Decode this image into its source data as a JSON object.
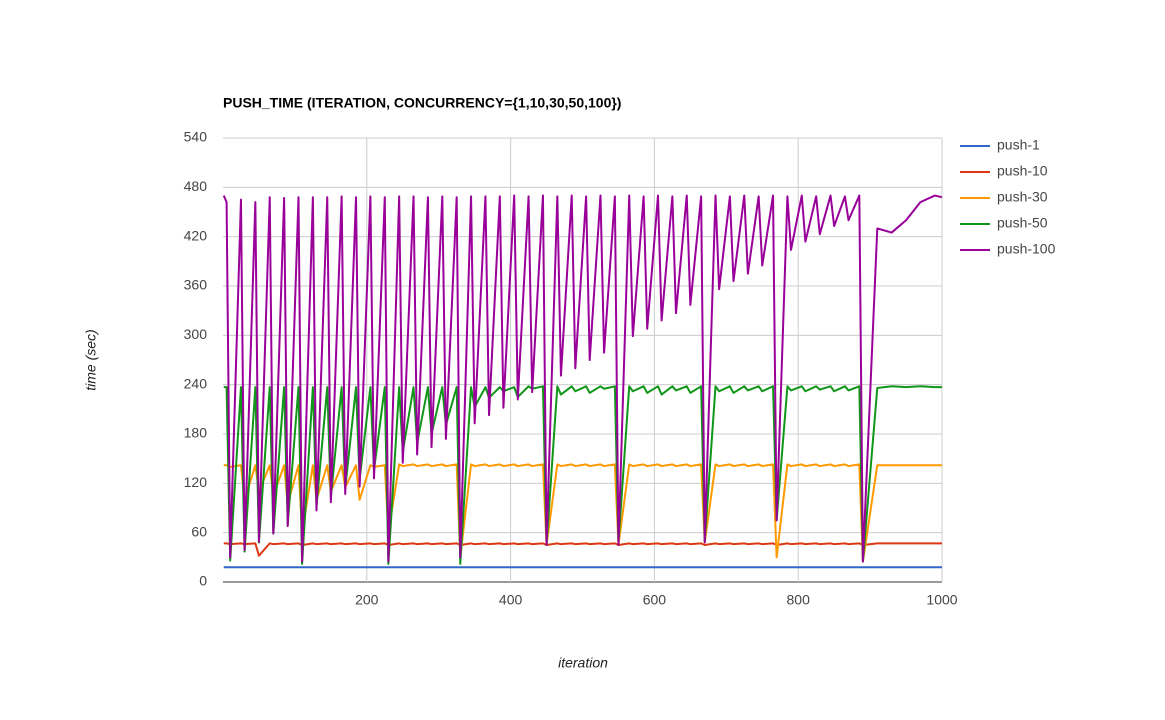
{
  "chart_data": {
    "type": "line",
    "title": "PUSH_TIME (ITERATION, CONCURRENCY={1,10,30,50,100})",
    "x_label": "iteration",
    "y_label": "time (sec)",
    "xlim": [
      0,
      1000
    ],
    "xticks": [
      200,
      400,
      600,
      800,
      1000
    ],
    "ylim": [
      0,
      540
    ],
    "yticks": [
      0,
      60,
      120,
      180,
      240,
      300,
      360,
      420,
      480,
      540
    ],
    "grid": true,
    "legend": "right",
    "x": [
      1,
      5,
      10,
      25,
      30,
      45,
      50,
      65,
      70,
      85,
      90,
      105,
      110,
      125,
      130,
      145,
      150,
      165,
      170,
      185,
      190,
      205,
      210,
      225,
      230,
      245,
      250,
      265,
      270,
      285,
      290,
      305,
      310,
      325,
      330,
      345,
      350,
      365,
      370,
      385,
      390,
      405,
      410,
      425,
      430,
      445,
      450,
      465,
      470,
      485,
      490,
      505,
      510,
      525,
      530,
      545,
      550,
      565,
      570,
      585,
      590,
      605,
      610,
      625,
      630,
      645,
      650,
      665,
      670,
      685,
      690,
      705,
      710,
      725,
      730,
      745,
      750,
      765,
      770,
      785,
      790,
      805,
      810,
      825,
      830,
      845,
      850,
      865,
      870,
      885,
      890,
      910,
      930,
      950,
      970,
      990,
      1000
    ],
    "series": [
      {
        "name": "push-1",
        "color": "#3366cc",
        "values": [
          18,
          18,
          18,
          18,
          18,
          18,
          18,
          18,
          18,
          18,
          18,
          18,
          18,
          18,
          18,
          18,
          18,
          18,
          18,
          18,
          18,
          18,
          18,
          18,
          18,
          18,
          18,
          18,
          18,
          18,
          18,
          18,
          18,
          18,
          18,
          18,
          18,
          18,
          18,
          18,
          18,
          18,
          18,
          18,
          18,
          18,
          18,
          18,
          18,
          18,
          18,
          18,
          18,
          18,
          18,
          18,
          18,
          18,
          18,
          18,
          18,
          18,
          18,
          18,
          18,
          18,
          18,
          18,
          18,
          18,
          18,
          18,
          18,
          18,
          18,
          18,
          18,
          18,
          18,
          18,
          18,
          18,
          18,
          18,
          18,
          18,
          18,
          18,
          18,
          18,
          18,
          18,
          18,
          18,
          18,
          18,
          18
        ]
      },
      {
        "name": "push-10",
        "color": "#dc3912",
        "values": [
          47,
          47,
          46,
          47,
          46,
          47,
          32,
          47,
          46,
          47,
          46,
          47,
          45,
          47,
          46,
          47,
          46,
          47,
          46,
          47,
          46,
          47,
          46,
          47,
          45,
          47,
          46,
          47,
          46,
          47,
          46,
          47,
          46,
          47,
          45,
          47,
          46,
          47,
          46,
          47,
          46,
          47,
          46,
          47,
          46,
          47,
          45,
          47,
          46,
          47,
          46,
          47,
          46,
          47,
          46,
          47,
          45,
          47,
          46,
          47,
          46,
          47,
          46,
          47,
          46,
          47,
          46,
          47,
          45,
          47,
          46,
          47,
          46,
          47,
          46,
          47,
          46,
          47,
          45,
          47,
          46,
          47,
          46,
          47,
          46,
          47,
          46,
          47,
          46,
          47,
          45,
          47,
          47,
          47,
          47,
          47,
          47
        ]
      },
      {
        "name": "push-30",
        "color": "#ff9900",
        "values": [
          142,
          142,
          140,
          142,
          100,
          142,
          110,
          142,
          105,
          142,
          95,
          142,
          60,
          142,
          100,
          142,
          110,
          142,
          115,
          142,
          100,
          142,
          140,
          142,
          60,
          143,
          141,
          143,
          141,
          143,
          141,
          143,
          141,
          143,
          30,
          143,
          141,
          143,
          141,
          143,
          141,
          143,
          141,
          143,
          141,
          143,
          45,
          143,
          141,
          143,
          141,
          143,
          141,
          143,
          141,
          143,
          45,
          143,
          141,
          143,
          141,
          143,
          141,
          143,
          141,
          143,
          141,
          143,
          48,
          143,
          141,
          143,
          141,
          143,
          141,
          143,
          141,
          143,
          30,
          143,
          141,
          143,
          141,
          143,
          141,
          143,
          141,
          143,
          141,
          143,
          25,
          142,
          142,
          142,
          142,
          142,
          142
        ]
      },
      {
        "name": "push-50",
        "color": "#109618",
        "values": [
          237,
          237,
          26,
          237,
          37,
          237,
          48,
          237,
          59,
          237,
          70,
          237,
          22,
          237,
          92,
          237,
          103,
          237,
          114,
          237,
          125,
          237,
          136,
          237,
          22,
          237,
          158,
          237,
          169,
          237,
          180,
          237,
          191,
          237,
          22,
          237,
          213,
          237,
          224,
          237,
          232,
          237,
          225,
          238,
          235,
          238,
          45,
          238,
          228,
          238,
          232,
          238,
          230,
          238,
          235,
          238,
          48,
          238,
          232,
          238,
          230,
          238,
          228,
          238,
          233,
          238,
          230,
          238,
          50,
          238,
          232,
          238,
          230,
          238,
          233,
          238,
          232,
          238,
          75,
          238,
          233,
          238,
          232,
          238,
          234,
          238,
          232,
          238,
          233,
          238,
          25,
          236,
          238,
          237,
          238,
          237,
          237
        ]
      },
      {
        "name": "push-100",
        "color": "#990099",
        "values": [
          470,
          462,
          30,
          465,
          39,
          462,
          49,
          468,
          59,
          467,
          68,
          468,
          25,
          468,
          87,
          468,
          97,
          469,
          107,
          468,
          116,
          469,
          126,
          468,
          25,
          469,
          145,
          469,
          155,
          468,
          164,
          469,
          174,
          468,
          30,
          469,
          193,
          469,
          203,
          469,
          212,
          470,
          222,
          469,
          231,
          470,
          45,
          469,
          251,
          470,
          260,
          469,
          270,
          470,
          279,
          469,
          45,
          470,
          299,
          469,
          308,
          470,
          318,
          469,
          327,
          470,
          337,
          469,
          48,
          470,
          356,
          469,
          366,
          470,
          375,
          469,
          385,
          470,
          75,
          469,
          404,
          470,
          414,
          469,
          423,
          470,
          433,
          469,
          440,
          470,
          25,
          430,
          425,
          440,
          462,
          470,
          468
        ]
      }
    ]
  }
}
